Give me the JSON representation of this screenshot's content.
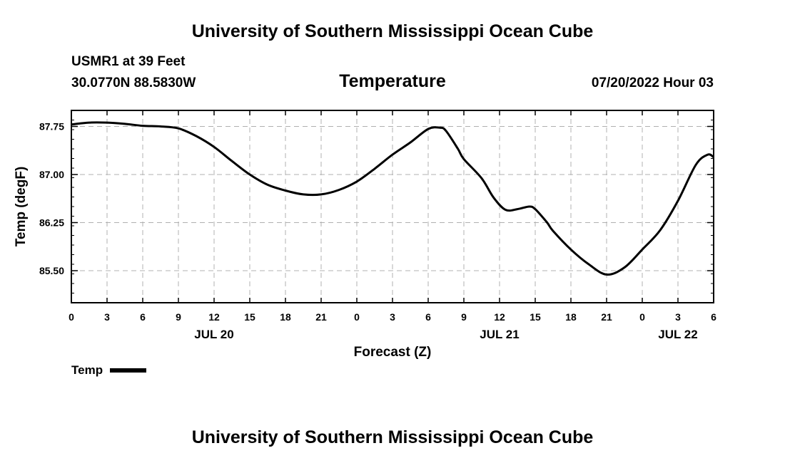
{
  "header": {
    "title": "University of Southern Mississippi Ocean Cube",
    "station": "USMR1 at 39 Feet",
    "coords": "30.0770N  88.5830W",
    "chart_title": "Temperature",
    "datetime": "07/20/2022 Hour 03"
  },
  "footer": {
    "title": "University of Southern Mississippi Ocean Cube"
  },
  "legend": {
    "label": "Temp",
    "color": "#000000"
  },
  "chart_data": {
    "type": "line",
    "title": "Temperature",
    "xlabel": "Forecast (Z)",
    "ylabel": "Temp (degF)",
    "x_unit": "hours since JUL 20 00Z",
    "xlim": [
      0,
      54
    ],
    "ylim": [
      85.0,
      88.0
    ],
    "x_ticks": [
      0,
      3,
      6,
      9,
      12,
      15,
      18,
      21,
      24,
      27,
      30,
      33,
      36,
      39,
      42,
      45,
      48,
      51,
      54
    ],
    "x_tick_labels": [
      "0",
      "3",
      "6",
      "9",
      "12",
      "15",
      "18",
      "21",
      "0",
      "3",
      "6",
      "9",
      "12",
      "15",
      "18",
      "21",
      "0",
      "3",
      "6"
    ],
    "date_labels": [
      {
        "x": 12,
        "label": "JUL 20"
      },
      {
        "x": 36,
        "label": "JUL 21"
      },
      {
        "x": 51,
        "label": "JUL 22"
      }
    ],
    "y_ticks": [
      85.5,
      86.25,
      87.0,
      87.75
    ],
    "y_tick_labels": [
      "85.50",
      "86.25",
      "87.00",
      "87.75"
    ],
    "grid": true,
    "series": [
      {
        "name": "Temp",
        "color": "#000000",
        "x": [
          0,
          1.5,
          3,
          4.5,
          6,
          7.5,
          9,
          10.5,
          12,
          13.5,
          15,
          16.5,
          18,
          19.5,
          21,
          22.5,
          24,
          25.5,
          27,
          28.5,
          30,
          31,
          31.5,
          32.5,
          33,
          34.5,
          35.5,
          36.5,
          37.5,
          38.5,
          39,
          40,
          40.5,
          42,
          43.5,
          45,
          46.5,
          48,
          49.5,
          51,
          52.5,
          53.5,
          54
        ],
        "y": [
          87.78,
          87.81,
          87.81,
          87.79,
          87.76,
          87.75,
          87.72,
          87.6,
          87.43,
          87.21,
          87.0,
          86.84,
          86.75,
          86.69,
          86.69,
          86.76,
          86.89,
          87.09,
          87.31,
          87.5,
          87.71,
          87.73,
          87.68,
          87.4,
          87.24,
          86.94,
          86.64,
          86.45,
          86.46,
          86.5,
          86.46,
          86.25,
          86.12,
          85.83,
          85.6,
          85.44,
          85.55,
          85.83,
          86.13,
          86.59,
          87.15,
          87.31,
          87.27
        ]
      }
    ]
  }
}
